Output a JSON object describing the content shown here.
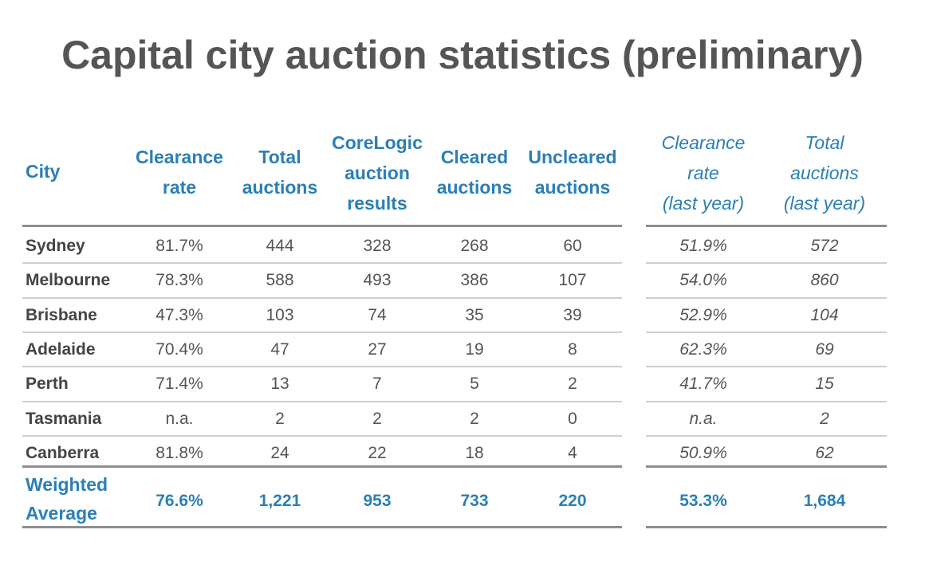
{
  "title": "Capital city auction statistics (preliminary)",
  "headers": {
    "city": "City",
    "clearance_rate": [
      "Clearance",
      "rate"
    ],
    "total_auctions": [
      "Total",
      "auctions"
    ],
    "corelogic": [
      "CoreLogic",
      "auction",
      "results"
    ],
    "cleared": [
      "Cleared",
      "auctions"
    ],
    "uncleared": [
      "Uncleared",
      "auctions"
    ],
    "clearance_rate_last_year": [
      "Clearance",
      "rate",
      "(last year)"
    ],
    "total_auctions_last_year": [
      "Total",
      "auctions",
      "(last year)"
    ]
  },
  "rows": [
    {
      "city": "Sydney",
      "clearance_rate": "81.7%",
      "total_auctions": "444",
      "corelogic": "328",
      "cleared": "268",
      "uncleared": "60",
      "clearance_rate_last_year": "51.9%",
      "total_auctions_last_year": "572"
    },
    {
      "city": "Melbourne",
      "clearance_rate": "78.3%",
      "total_auctions": "588",
      "corelogic": "493",
      "cleared": "386",
      "uncleared": "107",
      "clearance_rate_last_year": "54.0%",
      "total_auctions_last_year": "860"
    },
    {
      "city": "Brisbane",
      "clearance_rate": "47.3%",
      "total_auctions": "103",
      "corelogic": "74",
      "cleared": "35",
      "uncleared": "39",
      "clearance_rate_last_year": "52.9%",
      "total_auctions_last_year": "104"
    },
    {
      "city": "Adelaide",
      "clearance_rate": "70.4%",
      "total_auctions": "47",
      "corelogic": "27",
      "cleared": "19",
      "uncleared": "8",
      "clearance_rate_last_year": "62.3%",
      "total_auctions_last_year": "69"
    },
    {
      "city": "Perth",
      "clearance_rate": "71.4%",
      "total_auctions": "13",
      "corelogic": "7",
      "cleared": "5",
      "uncleared": "2",
      "clearance_rate_last_year": "41.7%",
      "total_auctions_last_year": "15"
    },
    {
      "city": "Tasmania",
      "clearance_rate": "n.a.",
      "total_auctions": "2",
      "corelogic": "2",
      "cleared": "2",
      "uncleared": "0",
      "clearance_rate_last_year": "n.a.",
      "total_auctions_last_year": "2"
    },
    {
      "city": "Canberra",
      "clearance_rate": "81.8%",
      "total_auctions": "24",
      "corelogic": "22",
      "cleared": "18",
      "uncleared": "4",
      "clearance_rate_last_year": "50.9%",
      "total_auctions_last_year": "62"
    }
  ],
  "weighted_average": {
    "label": [
      "Weighted",
      "Average"
    ],
    "clearance_rate": "76.6%",
    "total_auctions": "1,221",
    "corelogic": "953",
    "cleared": "733",
    "uncleared": "220",
    "clearance_rate_last_year": "53.3%",
    "total_auctions_last_year": "1,684"
  },
  "colors": {
    "header_accent": "#2b7fb6",
    "title_text": "#555555",
    "rule": "#8e8e8e"
  }
}
